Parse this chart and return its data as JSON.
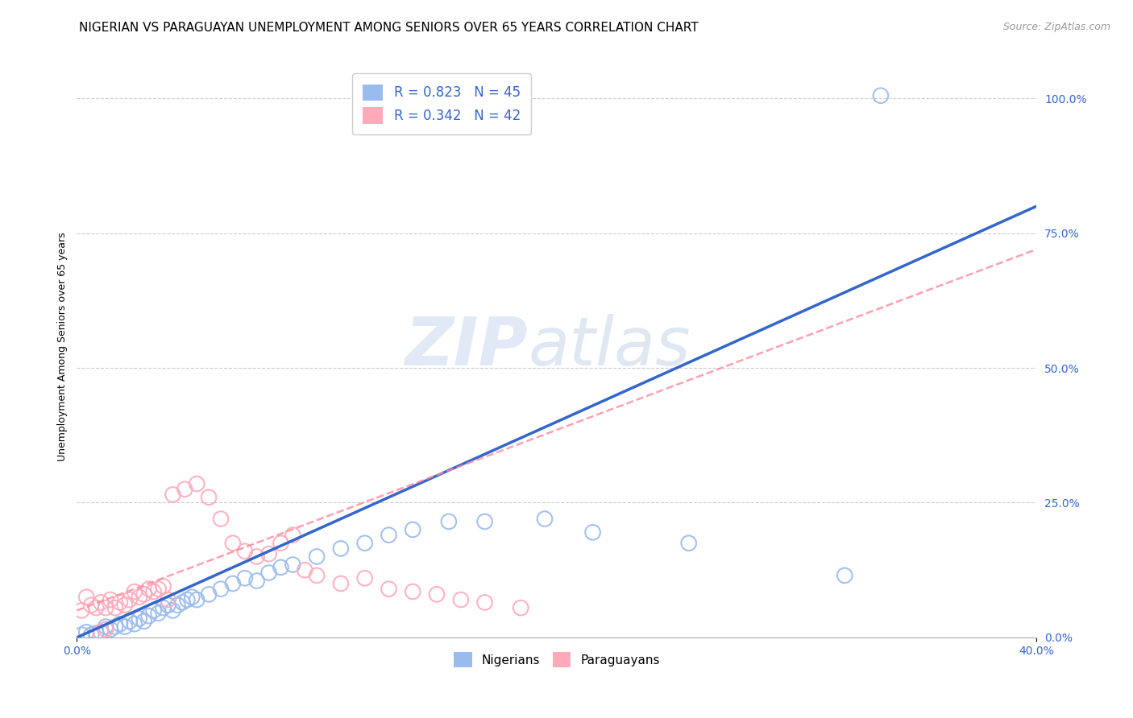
{
  "title": "NIGERIAN VS PARAGUAYAN UNEMPLOYMENT AMONG SENIORS OVER 65 YEARS CORRELATION CHART",
  "source": "Source: ZipAtlas.com",
  "ylabel": "Unemployment Among Seniors over 65 years",
  "xlim": [
    0.0,
    0.4
  ],
  "ylim": [
    0.0,
    1.08
  ],
  "yticks": [
    0.0,
    0.25,
    0.5,
    0.75,
    1.0
  ],
  "yticklabels": [
    "0.0%",
    "25.0%",
    "50.0%",
    "75.0%",
    "100.0%"
  ],
  "watermark_zip": "ZIP",
  "watermark_atlas": "atlas",
  "blue_scatter_color": "#99bbee",
  "pink_scatter_color": "#ffaabb",
  "blue_line_color": "#3366cc",
  "pink_line_color": "#ff8899",
  "grid_color": "#cccccc",
  "background_color": "#ffffff",
  "nigerian_R": 0.823,
  "nigerian_N": 45,
  "paraguayan_R": 0.342,
  "paraguayan_N": 42,
  "blue_line_x": [
    0.0,
    0.4
  ],
  "blue_line_y": [
    0.0,
    0.8
  ],
  "pink_line_x": [
    0.0,
    0.4
  ],
  "pink_line_y": [
    0.05,
    0.72
  ],
  "nigerian_points": [
    [
      0.002,
      0.005
    ],
    [
      0.004,
      0.01
    ],
    [
      0.006,
      0.005
    ],
    [
      0.008,
      0.008
    ],
    [
      0.01,
      0.01
    ],
    [
      0.012,
      0.02
    ],
    [
      0.014,
      0.015
    ],
    [
      0.016,
      0.02
    ],
    [
      0.018,
      0.025
    ],
    [
      0.02,
      0.02
    ],
    [
      0.022,
      0.03
    ],
    [
      0.024,
      0.025
    ],
    [
      0.026,
      0.035
    ],
    [
      0.028,
      0.03
    ],
    [
      0.03,
      0.04
    ],
    [
      0.032,
      0.05
    ],
    [
      0.034,
      0.045
    ],
    [
      0.036,
      0.055
    ],
    [
      0.038,
      0.06
    ],
    [
      0.04,
      0.05
    ],
    [
      0.042,
      0.06
    ],
    [
      0.044,
      0.065
    ],
    [
      0.046,
      0.07
    ],
    [
      0.048,
      0.075
    ],
    [
      0.05,
      0.07
    ],
    [
      0.055,
      0.08
    ],
    [
      0.06,
      0.09
    ],
    [
      0.065,
      0.1
    ],
    [
      0.07,
      0.11
    ],
    [
      0.075,
      0.105
    ],
    [
      0.08,
      0.12
    ],
    [
      0.085,
      0.13
    ],
    [
      0.09,
      0.135
    ],
    [
      0.1,
      0.15
    ],
    [
      0.11,
      0.165
    ],
    [
      0.12,
      0.175
    ],
    [
      0.13,
      0.19
    ],
    [
      0.14,
      0.2
    ],
    [
      0.155,
      0.215
    ],
    [
      0.17,
      0.215
    ],
    [
      0.195,
      0.22
    ],
    [
      0.215,
      0.195
    ],
    [
      0.255,
      0.175
    ],
    [
      0.32,
      0.115
    ],
    [
      0.335,
      1.005
    ]
  ],
  "paraguayan_points": [
    [
      0.002,
      0.05
    ],
    [
      0.004,
      0.075
    ],
    [
      0.006,
      0.06
    ],
    [
      0.008,
      0.055
    ],
    [
      0.01,
      0.065
    ],
    [
      0.012,
      0.055
    ],
    [
      0.014,
      0.07
    ],
    [
      0.016,
      0.055
    ],
    [
      0.018,
      0.065
    ],
    [
      0.02,
      0.06
    ],
    [
      0.022,
      0.07
    ],
    [
      0.024,
      0.085
    ],
    [
      0.026,
      0.075
    ],
    [
      0.028,
      0.08
    ],
    [
      0.03,
      0.09
    ],
    [
      0.032,
      0.085
    ],
    [
      0.034,
      0.09
    ],
    [
      0.036,
      0.095
    ],
    [
      0.038,
      0.07
    ],
    [
      0.04,
      0.265
    ],
    [
      0.045,
      0.275
    ],
    [
      0.05,
      0.285
    ],
    [
      0.055,
      0.26
    ],
    [
      0.06,
      0.22
    ],
    [
      0.065,
      0.175
    ],
    [
      0.07,
      0.16
    ],
    [
      0.075,
      0.15
    ],
    [
      0.08,
      0.155
    ],
    [
      0.085,
      0.175
    ],
    [
      0.09,
      0.19
    ],
    [
      0.01,
      0.01
    ],
    [
      0.012,
      0.015
    ],
    [
      0.095,
      0.125
    ],
    [
      0.1,
      0.115
    ],
    [
      0.11,
      0.1
    ],
    [
      0.12,
      0.11
    ],
    [
      0.13,
      0.09
    ],
    [
      0.14,
      0.085
    ],
    [
      0.15,
      0.08
    ],
    [
      0.16,
      0.07
    ],
    [
      0.17,
      0.065
    ],
    [
      0.185,
      0.055
    ]
  ],
  "title_fontsize": 11,
  "axis_label_fontsize": 9,
  "tick_fontsize": 10,
  "legend_fontsize": 12,
  "source_fontsize": 9
}
